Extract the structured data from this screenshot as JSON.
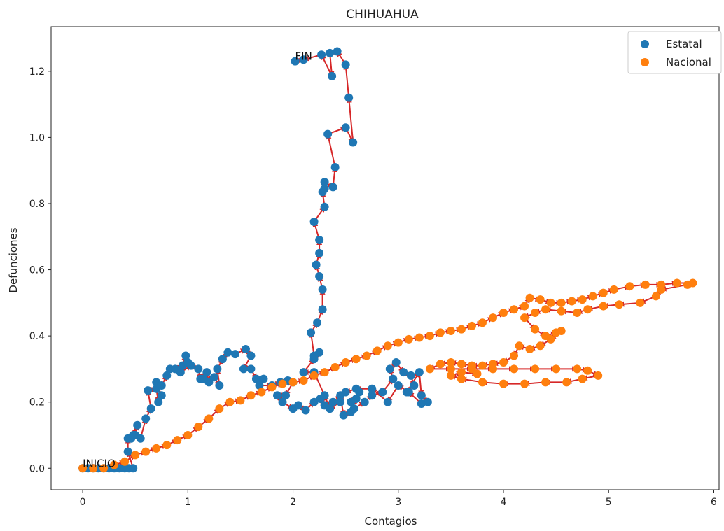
{
  "chart_data": {
    "type": "scatter",
    "title": "CHIHUAHUA",
    "xlabel": "Contagios",
    "ylabel": "Defunciones",
    "xlim": [
      -0.3,
      6.05
    ],
    "ylim": [
      -0.065,
      1.335
    ],
    "xticks": [
      0,
      1,
      2,
      3,
      4,
      5,
      6
    ],
    "yticks": [
      0.0,
      0.2,
      0.4,
      0.6,
      0.8,
      1.0,
      1.2
    ],
    "grid": false,
    "legend_position": "top-right",
    "arrow_color": "#d62728",
    "annotations": [
      {
        "text": "INICIO",
        "x": 0.0,
        "y": 0.0
      },
      {
        "text": "FIN",
        "x": 2.02,
        "y": 1.23
      }
    ],
    "series": [
      {
        "name": "Estatal",
        "color": "#1f77b4",
        "points": [
          [
            0.0,
            0.0
          ],
          [
            0.05,
            0.0
          ],
          [
            0.1,
            0.0
          ],
          [
            0.15,
            0.0
          ],
          [
            0.2,
            0.0
          ],
          [
            0.25,
            0.0
          ],
          [
            0.3,
            0.0
          ],
          [
            0.35,
            0.0
          ],
          [
            0.4,
            0.0
          ],
          [
            0.44,
            0.0
          ],
          [
            0.48,
            0.0
          ],
          [
            0.43,
            0.05
          ],
          [
            0.43,
            0.09
          ],
          [
            0.46,
            0.09
          ],
          [
            0.5,
            0.1
          ],
          [
            0.52,
            0.13
          ],
          [
            0.48,
            0.1
          ],
          [
            0.55,
            0.09
          ],
          [
            0.6,
            0.15
          ],
          [
            0.65,
            0.18
          ],
          [
            0.62,
            0.235
          ],
          [
            0.7,
            0.24
          ],
          [
            0.72,
            0.2
          ],
          [
            0.75,
            0.22
          ],
          [
            0.7,
            0.26
          ],
          [
            0.75,
            0.25
          ],
          [
            0.8,
            0.28
          ],
          [
            0.83,
            0.3
          ],
          [
            0.88,
            0.3
          ],
          [
            0.95,
            0.31
          ],
          [
            0.98,
            0.34
          ],
          [
            1.0,
            0.32
          ],
          [
            0.93,
            0.29
          ],
          [
            1.03,
            0.31
          ],
          [
            1.1,
            0.3
          ],
          [
            1.12,
            0.27
          ],
          [
            1.18,
            0.29
          ],
          [
            1.2,
            0.26
          ],
          [
            1.15,
            0.27
          ],
          [
            1.25,
            0.275
          ],
          [
            1.3,
            0.25
          ],
          [
            1.28,
            0.3
          ],
          [
            1.33,
            0.33
          ],
          [
            1.38,
            0.35
          ],
          [
            1.45,
            0.345
          ],
          [
            1.55,
            0.36
          ],
          [
            1.6,
            0.34
          ],
          [
            1.53,
            0.3
          ],
          [
            1.6,
            0.3
          ],
          [
            1.65,
            0.27
          ],
          [
            1.72,
            0.27
          ],
          [
            1.68,
            0.25
          ],
          [
            1.8,
            0.25
          ],
          [
            1.88,
            0.26
          ],
          [
            1.95,
            0.265
          ],
          [
            2.0,
            0.26
          ],
          [
            1.93,
            0.22
          ],
          [
            1.85,
            0.22
          ],
          [
            1.9,
            0.2
          ],
          [
            2.0,
            0.18
          ],
          [
            2.05,
            0.19
          ],
          [
            2.12,
            0.175
          ],
          [
            2.2,
            0.2
          ],
          [
            2.26,
            0.21
          ],
          [
            2.3,
            0.19
          ],
          [
            2.38,
            0.2
          ],
          [
            2.45,
            0.22
          ],
          [
            2.48,
            0.16
          ],
          [
            2.55,
            0.17
          ],
          [
            2.6,
            0.21
          ],
          [
            2.63,
            0.23
          ],
          [
            2.55,
            0.2
          ],
          [
            2.58,
            0.18
          ],
          [
            2.68,
            0.2
          ],
          [
            2.75,
            0.22
          ],
          [
            2.85,
            0.23
          ],
          [
            2.95,
            0.27
          ],
          [
            2.92,
            0.3
          ],
          [
            2.98,
            0.32
          ],
          [
            3.05,
            0.29
          ],
          [
            3.12,
            0.28
          ],
          [
            3.15,
            0.25
          ],
          [
            3.08,
            0.23
          ],
          [
            3.2,
            0.29
          ],
          [
            3.22,
            0.22
          ],
          [
            3.28,
            0.2
          ],
          [
            3.22,
            0.195
          ],
          [
            3.1,
            0.23
          ],
          [
            3.0,
            0.25
          ],
          [
            2.9,
            0.2
          ],
          [
            2.75,
            0.24
          ],
          [
            2.6,
            0.24
          ],
          [
            2.5,
            0.23
          ],
          [
            2.45,
            0.2
          ],
          [
            2.35,
            0.18
          ],
          [
            2.3,
            0.22
          ],
          [
            2.2,
            0.29
          ],
          [
            2.1,
            0.29
          ],
          [
            2.2,
            0.33
          ],
          [
            2.25,
            0.35
          ],
          [
            2.2,
            0.34
          ],
          [
            2.17,
            0.41
          ],
          [
            2.23,
            0.44
          ],
          [
            2.28,
            0.48
          ],
          [
            2.28,
            0.54
          ],
          [
            2.25,
            0.58
          ],
          [
            2.22,
            0.615
          ],
          [
            2.25,
            0.65
          ],
          [
            2.25,
            0.69
          ],
          [
            2.2,
            0.745
          ],
          [
            2.3,
            0.79
          ],
          [
            2.28,
            0.835
          ],
          [
            2.3,
            0.845
          ],
          [
            2.3,
            0.865
          ],
          [
            2.38,
            0.85
          ],
          [
            2.4,
            0.91
          ],
          [
            2.33,
            1.01
          ],
          [
            2.5,
            1.03
          ],
          [
            2.57,
            0.985
          ],
          [
            2.53,
            1.12
          ],
          [
            2.5,
            1.22
          ],
          [
            2.42,
            1.26
          ],
          [
            2.35,
            1.255
          ],
          [
            2.37,
            1.185
          ],
          [
            2.27,
            1.25
          ],
          [
            2.1,
            1.235
          ],
          [
            2.02,
            1.23
          ]
        ]
      },
      {
        "name": "Nacional",
        "color": "#ff7f0e",
        "points": [
          [
            0.0,
            0.0
          ],
          [
            0.1,
            0.0
          ],
          [
            0.2,
            0.0
          ],
          [
            0.3,
            0.01
          ],
          [
            0.4,
            0.02
          ],
          [
            0.5,
            0.04
          ],
          [
            0.6,
            0.05
          ],
          [
            0.7,
            0.06
          ],
          [
            0.8,
            0.07
          ],
          [
            0.9,
            0.085
          ],
          [
            1.0,
            0.1
          ],
          [
            1.1,
            0.125
          ],
          [
            1.2,
            0.15
          ],
          [
            1.3,
            0.18
          ],
          [
            1.4,
            0.2
          ],
          [
            1.5,
            0.205
          ],
          [
            1.6,
            0.22
          ],
          [
            1.7,
            0.23
          ],
          [
            1.8,
            0.245
          ],
          [
            1.9,
            0.255
          ],
          [
            2.0,
            0.26
          ],
          [
            2.1,
            0.265
          ],
          [
            2.2,
            0.28
          ],
          [
            2.3,
            0.29
          ],
          [
            2.4,
            0.305
          ],
          [
            2.5,
            0.32
          ],
          [
            2.6,
            0.33
          ],
          [
            2.7,
            0.34
          ],
          [
            2.8,
            0.355
          ],
          [
            2.9,
            0.37
          ],
          [
            3.0,
            0.38
          ],
          [
            3.1,
            0.39
          ],
          [
            3.2,
            0.395
          ],
          [
            3.3,
            0.4
          ],
          [
            3.4,
            0.41
          ],
          [
            3.5,
            0.415
          ],
          [
            3.6,
            0.42
          ],
          [
            3.7,
            0.43
          ],
          [
            3.8,
            0.44
          ],
          [
            3.9,
            0.455
          ],
          [
            4.0,
            0.47
          ],
          [
            4.1,
            0.48
          ],
          [
            4.2,
            0.49
          ],
          [
            4.25,
            0.515
          ],
          [
            4.35,
            0.51
          ],
          [
            4.45,
            0.5
          ],
          [
            4.55,
            0.5
          ],
          [
            4.65,
            0.505
          ],
          [
            4.75,
            0.51
          ],
          [
            4.85,
            0.52
          ],
          [
            4.95,
            0.53
          ],
          [
            5.05,
            0.54
          ],
          [
            5.2,
            0.55
          ],
          [
            5.35,
            0.555
          ],
          [
            5.5,
            0.555
          ],
          [
            5.65,
            0.56
          ],
          [
            5.8,
            0.56
          ],
          [
            5.75,
            0.555
          ],
          [
            5.5,
            0.54
          ],
          [
            5.45,
            0.52
          ],
          [
            5.3,
            0.5
          ],
          [
            5.1,
            0.495
          ],
          [
            4.95,
            0.49
          ],
          [
            4.8,
            0.48
          ],
          [
            4.7,
            0.47
          ],
          [
            4.55,
            0.475
          ],
          [
            4.4,
            0.48
          ],
          [
            4.3,
            0.47
          ],
          [
            4.2,
            0.455
          ],
          [
            4.3,
            0.42
          ],
          [
            4.4,
            0.4
          ],
          [
            4.5,
            0.41
          ],
          [
            4.55,
            0.415
          ],
          [
            4.45,
            0.39
          ],
          [
            4.35,
            0.37
          ],
          [
            4.25,
            0.36
          ],
          [
            4.15,
            0.37
          ],
          [
            4.1,
            0.34
          ],
          [
            4.0,
            0.32
          ],
          [
            3.9,
            0.315
          ],
          [
            3.8,
            0.31
          ],
          [
            3.7,
            0.31
          ],
          [
            3.6,
            0.315
          ],
          [
            3.5,
            0.32
          ],
          [
            3.4,
            0.315
          ],
          [
            3.3,
            0.3
          ],
          [
            3.5,
            0.3
          ],
          [
            3.7,
            0.3
          ],
          [
            3.9,
            0.3
          ],
          [
            4.1,
            0.3
          ],
          [
            4.3,
            0.3
          ],
          [
            4.5,
            0.3
          ],
          [
            4.7,
            0.3
          ],
          [
            4.8,
            0.295
          ],
          [
            4.9,
            0.28
          ],
          [
            4.75,
            0.27
          ],
          [
            4.6,
            0.26
          ],
          [
            4.4,
            0.26
          ],
          [
            4.2,
            0.255
          ],
          [
            4.0,
            0.255
          ],
          [
            3.8,
            0.26
          ],
          [
            3.6,
            0.27
          ],
          [
            3.5,
            0.28
          ],
          [
            3.6,
            0.29
          ],
          [
            3.75,
            0.285
          ]
        ]
      }
    ]
  }
}
